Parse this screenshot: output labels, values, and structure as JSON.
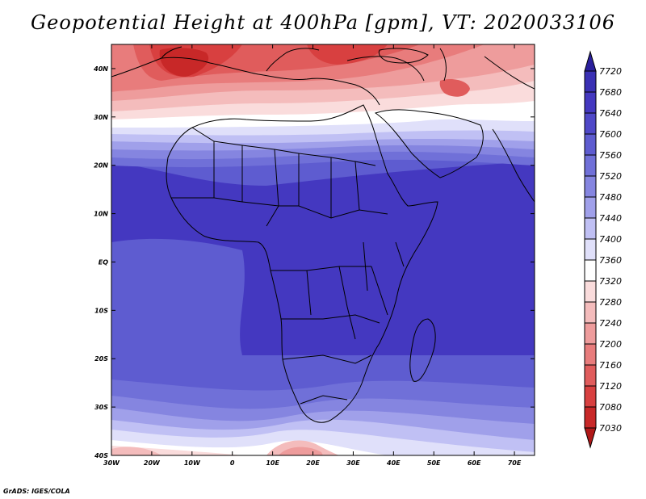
{
  "title": "Geopotential Height at 400hPa [gpm], VT: 2020033106",
  "credit": "GrADS: IGES/COLA",
  "map": {
    "variable": "Geopotential Height",
    "level": "400hPa",
    "units": "gpm",
    "valid_time": "2020033106",
    "lon_range": [
      -30,
      75
    ],
    "lat_range": [
      -40,
      45
    ]
  },
  "axes": {
    "x_ticks": [
      "30W",
      "20W",
      "10W",
      "0",
      "10E",
      "20E",
      "30E",
      "40E",
      "50E",
      "60E",
      "70E"
    ],
    "y_ticks": [
      "40N",
      "30N",
      "20N",
      "10N",
      "EQ",
      "10S",
      "20S",
      "30S",
      "40S"
    ]
  },
  "colorbar": {
    "labels": [
      "7720",
      "7680",
      "7640",
      "7600",
      "7560",
      "7520",
      "7480",
      "7440",
      "7400",
      "7360",
      "7320",
      "7280",
      "7240",
      "7200",
      "7160",
      "7120",
      "7080",
      "7030"
    ],
    "colors": [
      "#2a1f9c",
      "#3a30b4",
      "#4438c0",
      "#4f48c8",
      "#5e5cd0",
      "#7070d8",
      "#8585e0",
      "#a0a0ea",
      "#c0c0f4",
      "#e0e0fa",
      "#ffffff",
      "#fadcdc",
      "#f4bcbc",
      "#ee9c9c",
      "#e87c7c",
      "#e05c5c",
      "#d84040",
      "#c82828",
      "#b01818"
    ]
  }
}
